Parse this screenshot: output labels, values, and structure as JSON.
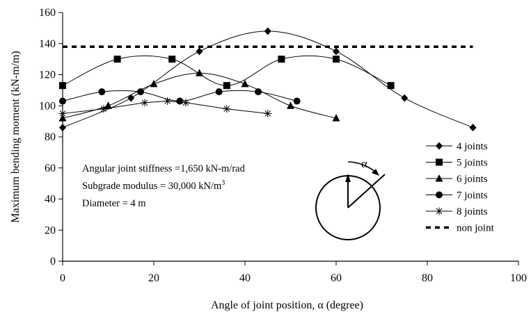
{
  "chart_data": {
    "type": "line",
    "title": "",
    "xlabel": "Angle of joint position, α (degree)",
    "ylabel": "Maximum bending moment (kN-m/m)",
    "xlim": [
      0,
      100
    ],
    "ylim": [
      0,
      160
    ],
    "xticks": [
      "0",
      "20",
      "40",
      "60",
      "80",
      "100"
    ],
    "yticks": [
      "0",
      "20",
      "40",
      "60",
      "80",
      "100",
      "120",
      "140",
      "160"
    ],
    "grid": false,
    "legend_position": "right",
    "series": [
      {
        "name": "4 joints",
        "marker": "diamond",
        "smooth": true,
        "x": [
          0,
          15,
          30,
          45,
          60,
          75,
          90
        ],
        "y": [
          86,
          105,
          135,
          148,
          135,
          105,
          86
        ]
      },
      {
        "name": "5 joints",
        "marker": "square",
        "smooth": true,
        "x": [
          0,
          12,
          24,
          36,
          48,
          60,
          72
        ],
        "y": [
          113,
          130,
          130,
          113,
          130,
          130,
          113
        ]
      },
      {
        "name": "6 joints",
        "marker": "triangle",
        "smooth": true,
        "x": [
          0,
          10,
          20,
          30,
          40,
          50,
          60
        ],
        "y": [
          92,
          100,
          114,
          121,
          114,
          100,
          92
        ]
      },
      {
        "name": "7 joints",
        "marker": "circle",
        "smooth": true,
        "x": [
          0,
          8.6,
          17.1,
          25.7,
          34.3,
          42.9,
          51.4
        ],
        "y": [
          103,
          109,
          109,
          103,
          109,
          109,
          103
        ]
      },
      {
        "name": "8 joints",
        "marker": "asterisk",
        "smooth": false,
        "x": [
          0,
          9,
          18,
          23,
          27,
          36,
          45
        ],
        "y": [
          95,
          98,
          102,
          103,
          102,
          98,
          95
        ]
      },
      {
        "name": "non joint",
        "marker": "none",
        "dashed": true,
        "x": [
          0,
          90
        ],
        "y": [
          138,
          138
        ]
      }
    ],
    "annotations": {
      "line1": "Angular joint stiffness =1,650 kN-m/rad",
      "line2_main": "Subgrade modulus = 30,000 kN/m",
      "line2_sup": "3",
      "line3": "Diameter = 4 m",
      "alpha_symbol": "α"
    }
  }
}
